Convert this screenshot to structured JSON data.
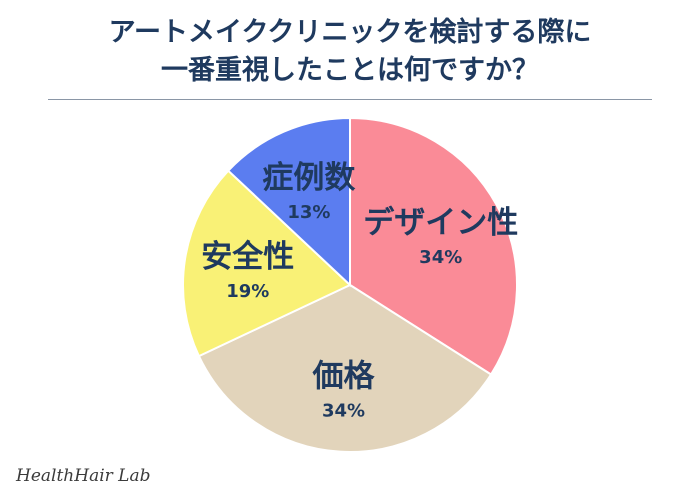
{
  "header": {
    "title_line1": "アートメイククリニックを検討する際に",
    "title_line2": "一番重視したことは何ですか？"
  },
  "chart_data": {
    "type": "pie",
    "slices": [
      {
        "label": "デザイン性",
        "value": 34,
        "value_label": "34%",
        "color": "#fa8b97"
      },
      {
        "label": "価格",
        "value": 34,
        "value_label": "34%",
        "color": "#e2d4bb"
      },
      {
        "label": "安全性",
        "value": 19,
        "value_label": "19%",
        "color": "#f9f176"
      },
      {
        "label": "症例数",
        "value": 13,
        "value_label": "13%",
        "color": "#5b7df0"
      }
    ],
    "start": "top",
    "direction": "clockwise",
    "stroke_color": "#ffffff"
  },
  "watermark": "HealthHair Lab"
}
